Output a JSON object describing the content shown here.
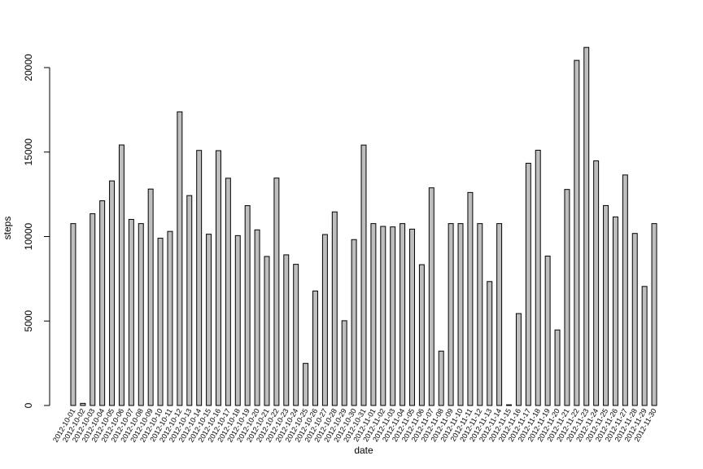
{
  "chart_data": {
    "type": "bar",
    "xlabel": "date",
    "ylabel": "steps",
    "ylim": [
      0,
      20000
    ],
    "yticks": [
      0,
      5000,
      10000,
      15000,
      20000
    ],
    "grid": false,
    "bar_fill": "#bebebe",
    "bar_stroke": "#000000",
    "categories": [
      "2012-10-01",
      "2012-10-02",
      "2012-10-03",
      "2012-10-04",
      "2012-10-05",
      "2012-10-06",
      "2012-10-07",
      "2012-10-08",
      "2012-10-09",
      "2012-10-10",
      "2012-10-11",
      "2012-10-12",
      "2012-10-13",
      "2012-10-14",
      "2012-10-15",
      "2012-10-16",
      "2012-10-17",
      "2012-10-18",
      "2012-10-19",
      "2012-10-20",
      "2012-10-21",
      "2012-10-22",
      "2012-10-23",
      "2012-10-24",
      "2012-10-25",
      "2012-10-26",
      "2012-10-27",
      "2012-10-28",
      "2012-10-29",
      "2012-10-30",
      "2012-10-31",
      "2012-11-01",
      "2012-11-02",
      "2012-11-03",
      "2012-11-04",
      "2012-11-05",
      "2012-11-06",
      "2012-11-07",
      "2012-11-08",
      "2012-11-09",
      "2012-11-10",
      "2012-11-11",
      "2012-11-12",
      "2012-11-13",
      "2012-11-14",
      "2012-11-15",
      "2012-11-16",
      "2012-11-17",
      "2012-11-18",
      "2012-11-19",
      "2012-11-20",
      "2012-11-21",
      "2012-11-22",
      "2012-11-23",
      "2012-11-24",
      "2012-11-25",
      "2012-11-26",
      "2012-11-27",
      "2012-11-28",
      "2012-11-29",
      "2012-11-30"
    ],
    "values": [
      10766,
      126,
      11352,
      12116,
      13294,
      15420,
      11015,
      10766,
      12811,
      9900,
      10304,
      17382,
      12426,
      15098,
      10139,
      15084,
      13452,
      10056,
      11829,
      10395,
      8821,
      13460,
      8918,
      8355,
      2492,
      6778,
      10119,
      11458,
      5018,
      9819,
      15414,
      10766,
      10600,
      10571,
      10766,
      10439,
      8334,
      12883,
      3219,
      10766,
      10766,
      12608,
      10765,
      7336,
      10766,
      41,
      5441,
      14339,
      15110,
      8841,
      4472,
      12787,
      20427,
      21194,
      14478,
      11834,
      11162,
      13646,
      10183,
      7047,
      10766
    ]
  }
}
